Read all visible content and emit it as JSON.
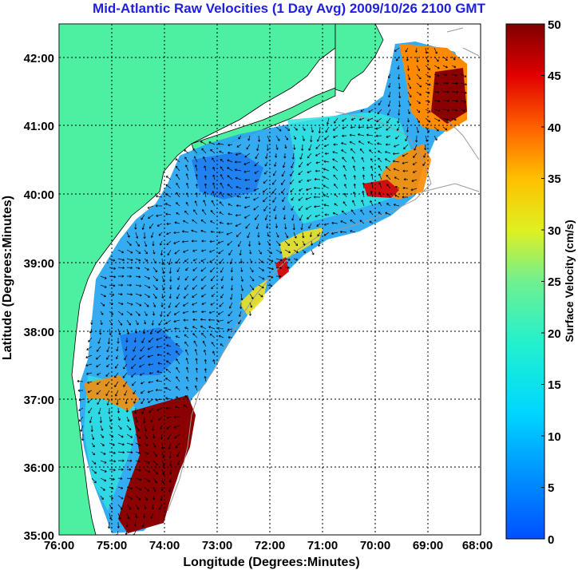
{
  "title": "Mid-Atlantic Raw Velocities (1 Day Avg) 2009/10/26 2100 GMT",
  "xlabel": "Longitude (Degrees:Minutes)",
  "ylabel": "Latitude (Degrees:Minutes)",
  "colorbar_label": "Surface Velocity (cm/s)",
  "x_ticks": [
    "76:00",
    "75:00",
    "74:00",
    "73:00",
    "72:00",
    "71:00",
    "70:00",
    "69:00",
    "68:00"
  ],
  "y_ticks": [
    "35:00",
    "36:00",
    "37:00",
    "38:00",
    "39:00",
    "40:00",
    "41:00",
    "42:00"
  ],
  "colorbar_ticks": [
    "0",
    "5",
    "10",
    "15",
    "20",
    "25",
    "30",
    "35",
    "40",
    "45",
    "50"
  ],
  "colors": {
    "title": "#1f1fe0",
    "land": "#4df0a0",
    "ocean": "#ffffff",
    "low_speed": "#1e90ff",
    "mid_speed": "#20e0d0",
    "high_speed": "#8b0000"
  },
  "chart_data": {
    "type": "heatmap",
    "xlim": [
      -76,
      -68
    ],
    "ylim": [
      35,
      42.5
    ],
    "clim": [
      0,
      50
    ],
    "colormap": "jet",
    "grid": true,
    "features": [
      "land",
      "bathymetry contours",
      "velocity vectors"
    ]
  }
}
